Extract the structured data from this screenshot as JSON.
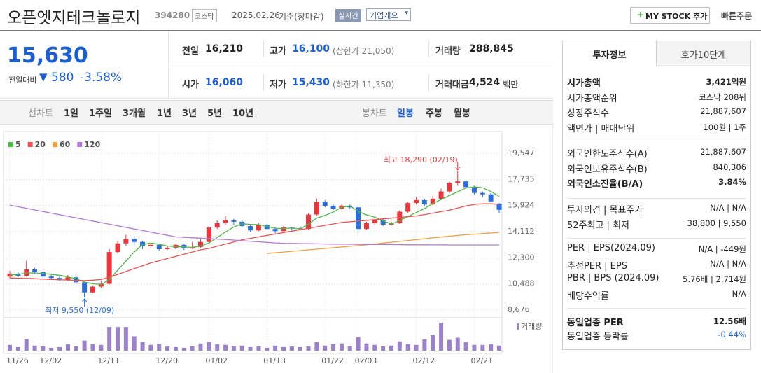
{
  "header": {
    "name": "오픈엣지테크놀로지",
    "code": "394280",
    "market": "코스닥",
    "date": "2025.02.26",
    "basis": "기준(장마감)",
    "realtime": "실시간",
    "overview": "기업개요",
    "mystock": "MY STOCK 추가",
    "quick_order": "빠른주문"
  },
  "price": {
    "current": "15,630",
    "change_label": "전일대비",
    "change": "580",
    "change_pct": "-3.58%"
  },
  "summary": {
    "rows": [
      [
        {
          "label": "전일",
          "value": "16,210"
        },
        {
          "label": "고가",
          "value": "16,100",
          "note": "(상한가 21,050)"
        },
        {
          "label": "거래량",
          "value": "288,845"
        }
      ],
      [
        {
          "label": "시가",
          "value": "16,060"
        },
        {
          "label": "저가",
          "value": "15,430",
          "note": "(하한가 11,350)"
        },
        {
          "label": "거래대금",
          "value": "4,524",
          "note": "백만"
        }
      ]
    ]
  },
  "tabs": {
    "line_label": "선차트",
    "line": [
      "1일",
      "1주일",
      "3개월",
      "1년",
      "3년",
      "5년",
      "10년"
    ],
    "candle_label": "봉차트",
    "candle": [
      "일봉",
      "주봉",
      "월봉"
    ]
  },
  "chart_data": {
    "type": "candlestick",
    "categories": [
      "11/26",
      null,
      null,
      null,
      "12/02",
      null,
      null,
      null,
      null,
      null,
      null,
      "12/11",
      null,
      null,
      null,
      null,
      null,
      null,
      "12/20",
      null,
      null,
      null,
      null,
      null,
      "01/02",
      null,
      null,
      null,
      null,
      null,
      null,
      "01/13",
      null,
      null,
      null,
      null,
      null,
      null,
      "01/22",
      null,
      null,
      null,
      "02/03",
      null,
      null,
      null,
      null,
      null,
      null,
      "02/12",
      null,
      null,
      null,
      null,
      null,
      null,
      "02/21",
      null,
      null,
      null
    ],
    "open": [
      11000,
      11200,
      11050,
      11500,
      11300,
      11000,
      10900,
      10750,
      10950,
      10600,
      9900,
      10300,
      10500,
      12700,
      13300,
      13600,
      13400,
      13100,
      13200,
      12900,
      13000,
      13200,
      12950,
      13050,
      13400,
      14400,
      14700,
      14900,
      14800,
      14500,
      14200,
      14600,
      14300,
      14150,
      14400,
      14350,
      14300,
      15300,
      16200,
      15900,
      15700,
      15900,
      15800,
      14300,
      14700,
      14900,
      14600,
      14700,
      15500,
      16100,
      16300,
      16000,
      16400,
      16900,
      17500,
      17600,
      17200,
      16800,
      16700,
      16060
    ],
    "high": [
      11400,
      11300,
      12100,
      11600,
      11350,
      11100,
      11000,
      11100,
      11000,
      10650,
      10400,
      10700,
      12900,
      13500,
      13900,
      13800,
      13500,
      13350,
      13250,
      13150,
      13300,
      13250,
      13400,
      13600,
      14500,
      14900,
      15200,
      15000,
      14900,
      14600,
      14700,
      14650,
      14400,
      14500,
      14450,
      14500,
      15400,
      16400,
      16300,
      16000,
      16000,
      16000,
      15850,
      14800,
      15000,
      15000,
      14800,
      15600,
      16200,
      16500,
      16400,
      16600,
      17100,
      17600,
      18290,
      17700,
      17300,
      16900,
      16800,
      16100
    ],
    "low": [
      10900,
      10950,
      11000,
      11200,
      10900,
      10800,
      10700,
      10700,
      10500,
      9550,
      9850,
      10200,
      10450,
      12600,
      13100,
      13200,
      12900,
      12950,
      12800,
      12850,
      12900,
      12850,
      12900,
      13000,
      13350,
      14300,
      14600,
      14600,
      14400,
      14100,
      14150,
      14200,
      14000,
      14100,
      14200,
      14200,
      14250,
      15200,
      15800,
      15600,
      15650,
      15700,
      14000,
      14250,
      14600,
      14500,
      14550,
      14650,
      15400,
      16000,
      15900,
      15950,
      16300,
      16800,
      17300,
      17100,
      16700,
      16500,
      16150,
      15430
    ],
    "close": [
      11200,
      11050,
      11500,
      11300,
      11000,
      10900,
      10750,
      10950,
      10600,
      9900,
      10300,
      10500,
      12700,
      13300,
      13600,
      13400,
      13100,
      13200,
      12900,
      13000,
      13200,
      12950,
      13050,
      13400,
      14400,
      14700,
      14900,
      14800,
      14500,
      14200,
      14600,
      14300,
      14150,
      14400,
      14350,
      14300,
      15300,
      16200,
      15900,
      15700,
      15900,
      15800,
      14300,
      14700,
      14900,
      14600,
      14700,
      15500,
      16100,
      16300,
      16000,
      16400,
      16900,
      17500,
      17600,
      17200,
      16800,
      16700,
      16210,
      15630
    ],
    "up_color": "#e8383d",
    "down_color": "#2d6fd8",
    "series": [
      {
        "name": "5",
        "color": "#4cb848",
        "values": [
          11100,
          11150,
          11250,
          11250,
          11220,
          11150,
          11090,
          10980,
          10840,
          10620,
          10500,
          10450,
          10800,
          11440,
          12080,
          12700,
          13220,
          13320,
          13240,
          13120,
          13080,
          13050,
          13020,
          13120,
          13320,
          13700,
          14090,
          14440,
          14660,
          14620,
          14600,
          14480,
          14350,
          14330,
          14360,
          14300,
          14640,
          15050,
          15240,
          15480,
          15800,
          15900,
          15520,
          15280,
          15120,
          14860,
          14640,
          14880,
          15160,
          15440,
          15720,
          16060,
          16340,
          16620,
          16880,
          17140,
          17220,
          17160,
          16900,
          16560
        ]
      },
      {
        "name": "20",
        "color": "#f0504f",
        "values": [
          10900,
          10880,
          10870,
          10850,
          10820,
          10800,
          10780,
          10760,
          10740,
          10720,
          10750,
          10800,
          10950,
          11150,
          11350,
          11550,
          11750,
          11950,
          12100,
          12250,
          12400,
          12550,
          12700,
          12850,
          12950,
          13100,
          13250,
          13400,
          13550,
          13650,
          13750,
          13850,
          13950,
          14050,
          14150,
          14250,
          14350,
          14450,
          14550,
          14650,
          14750,
          14800,
          14850,
          14900,
          14950,
          15000,
          15050,
          15100,
          15150,
          15200,
          15300,
          15400,
          15500,
          15600,
          15750,
          15900,
          16000,
          16050,
          16050,
          16000
        ]
      },
      {
        "name": "60",
        "color": "#f39c3a",
        "values": [
          null,
          null,
          null,
          null,
          null,
          null,
          null,
          null,
          null,
          null,
          null,
          null,
          null,
          null,
          null,
          null,
          null,
          null,
          null,
          null,
          null,
          null,
          null,
          null,
          null,
          null,
          null,
          null,
          null,
          null,
          null,
          12600,
          12650,
          12700,
          12750,
          12800,
          12850,
          12900,
          12950,
          13000,
          13050,
          13100,
          13150,
          13200,
          13260,
          13320,
          13380,
          13440,
          13500,
          13560,
          13620,
          13680,
          13740,
          13800,
          13850,
          13900,
          13940,
          13980,
          14020,
          14060
        ]
      },
      {
        "name": "120",
        "color": "#b57ad6",
        "values": [
          15950,
          15840,
          15730,
          15620,
          15510,
          15400,
          15290,
          15180,
          15070,
          14960,
          14850,
          14740,
          14630,
          14520,
          14410,
          14300,
          14190,
          14080,
          13970,
          13860,
          13750,
          13720,
          13690,
          13660,
          13630,
          13600,
          13570,
          13530,
          13490,
          13450,
          13410,
          13370,
          13330,
          13310,
          13300,
          13290,
          13280,
          13270,
          13260,
          13250,
          13245,
          13240,
          13235,
          13230,
          13225,
          13220,
          13215,
          13210,
          13205,
          13200,
          13200,
          13195,
          13195,
          13190,
          13190,
          13190,
          13190,
          13190,
          13190,
          13190
        ]
      }
    ],
    "volume": {
      "name": "거래량",
      "color": "#9b82c9",
      "values": [
        328000,
        205000,
        656000,
        287000,
        246000,
        164000,
        205000,
        369000,
        246000,
        574000,
        369000,
        328000,
        1353000,
        1353000,
        1353000,
        820000,
        492000,
        328000,
        369000,
        246000,
        205000,
        164000,
        246000,
        410000,
        492000,
        369000,
        328000,
        246000,
        287000,
        205000,
        246000,
        164000,
        287000,
        205000,
        246000,
        205000,
        246000,
        492000,
        287000,
        369000,
        410000,
        246000,
        779000,
        410000,
        328000,
        246000,
        287000,
        533000,
        369000,
        328000,
        656000,
        902000,
        1599000,
        615000,
        738000,
        492000,
        328000,
        328000,
        369000,
        288845
      ]
    },
    "ylim": [
      8240,
      20230
    ],
    "yticks": [
      {
        "value": 8676,
        "label": "8,676"
      },
      {
        "value": 10488,
        "label": "10,488"
      },
      {
        "value": 12300,
        "label": "12,300"
      },
      {
        "value": 14112,
        "label": "14,112"
      },
      {
        "value": 15924,
        "label": "15,924"
      },
      {
        "value": 17735,
        "label": "17,735"
      },
      {
        "value": 19547,
        "label": "19,547"
      }
    ],
    "grid": true,
    "annotations": [
      {
        "label": "최고 18,290 (02/19)",
        "value": 18290
      },
      {
        "label": "최저 9,550 (12/09)",
        "value": 9550
      }
    ]
  },
  "info": {
    "tabs": [
      "투자정보",
      "호가10단계"
    ],
    "groups": [
      [
        [
          "시가총액",
          "3,421억원"
        ],
        [
          "시가총액순위",
          "코스닥 208위"
        ],
        [
          "상장주식수",
          "21,887,607"
        ],
        [
          "액면가 | 매매단위",
          "100원 | 1주"
        ]
      ],
      [
        [
          "외국인한도주식수(A)",
          "21,887,607"
        ],
        [
          "외국인보유주식수(B)",
          "840,306"
        ],
        [
          "외국인소진율(B/A)",
          "3.84%"
        ]
      ],
      [
        [
          "투자의견 | 목표주가",
          "N/A | N/A"
        ],
        [
          "52주최고 | 최저",
          "38,800 | 9,550"
        ]
      ],
      [
        [
          "PER | EPS(2024.09)",
          "N/A | -449원"
        ],
        [
          "추정PER | EPS",
          "N/A | N/A"
        ],
        [
          "PBR | BPS (2024.09)",
          "5.76배 | 2,714원"
        ],
        [
          "배당수익률",
          "N/A"
        ]
      ],
      [
        [
          "동일업종 PER",
          "12.56배"
        ],
        [
          "동일업종 등락률",
          "-0.44%"
        ]
      ]
    ]
  }
}
